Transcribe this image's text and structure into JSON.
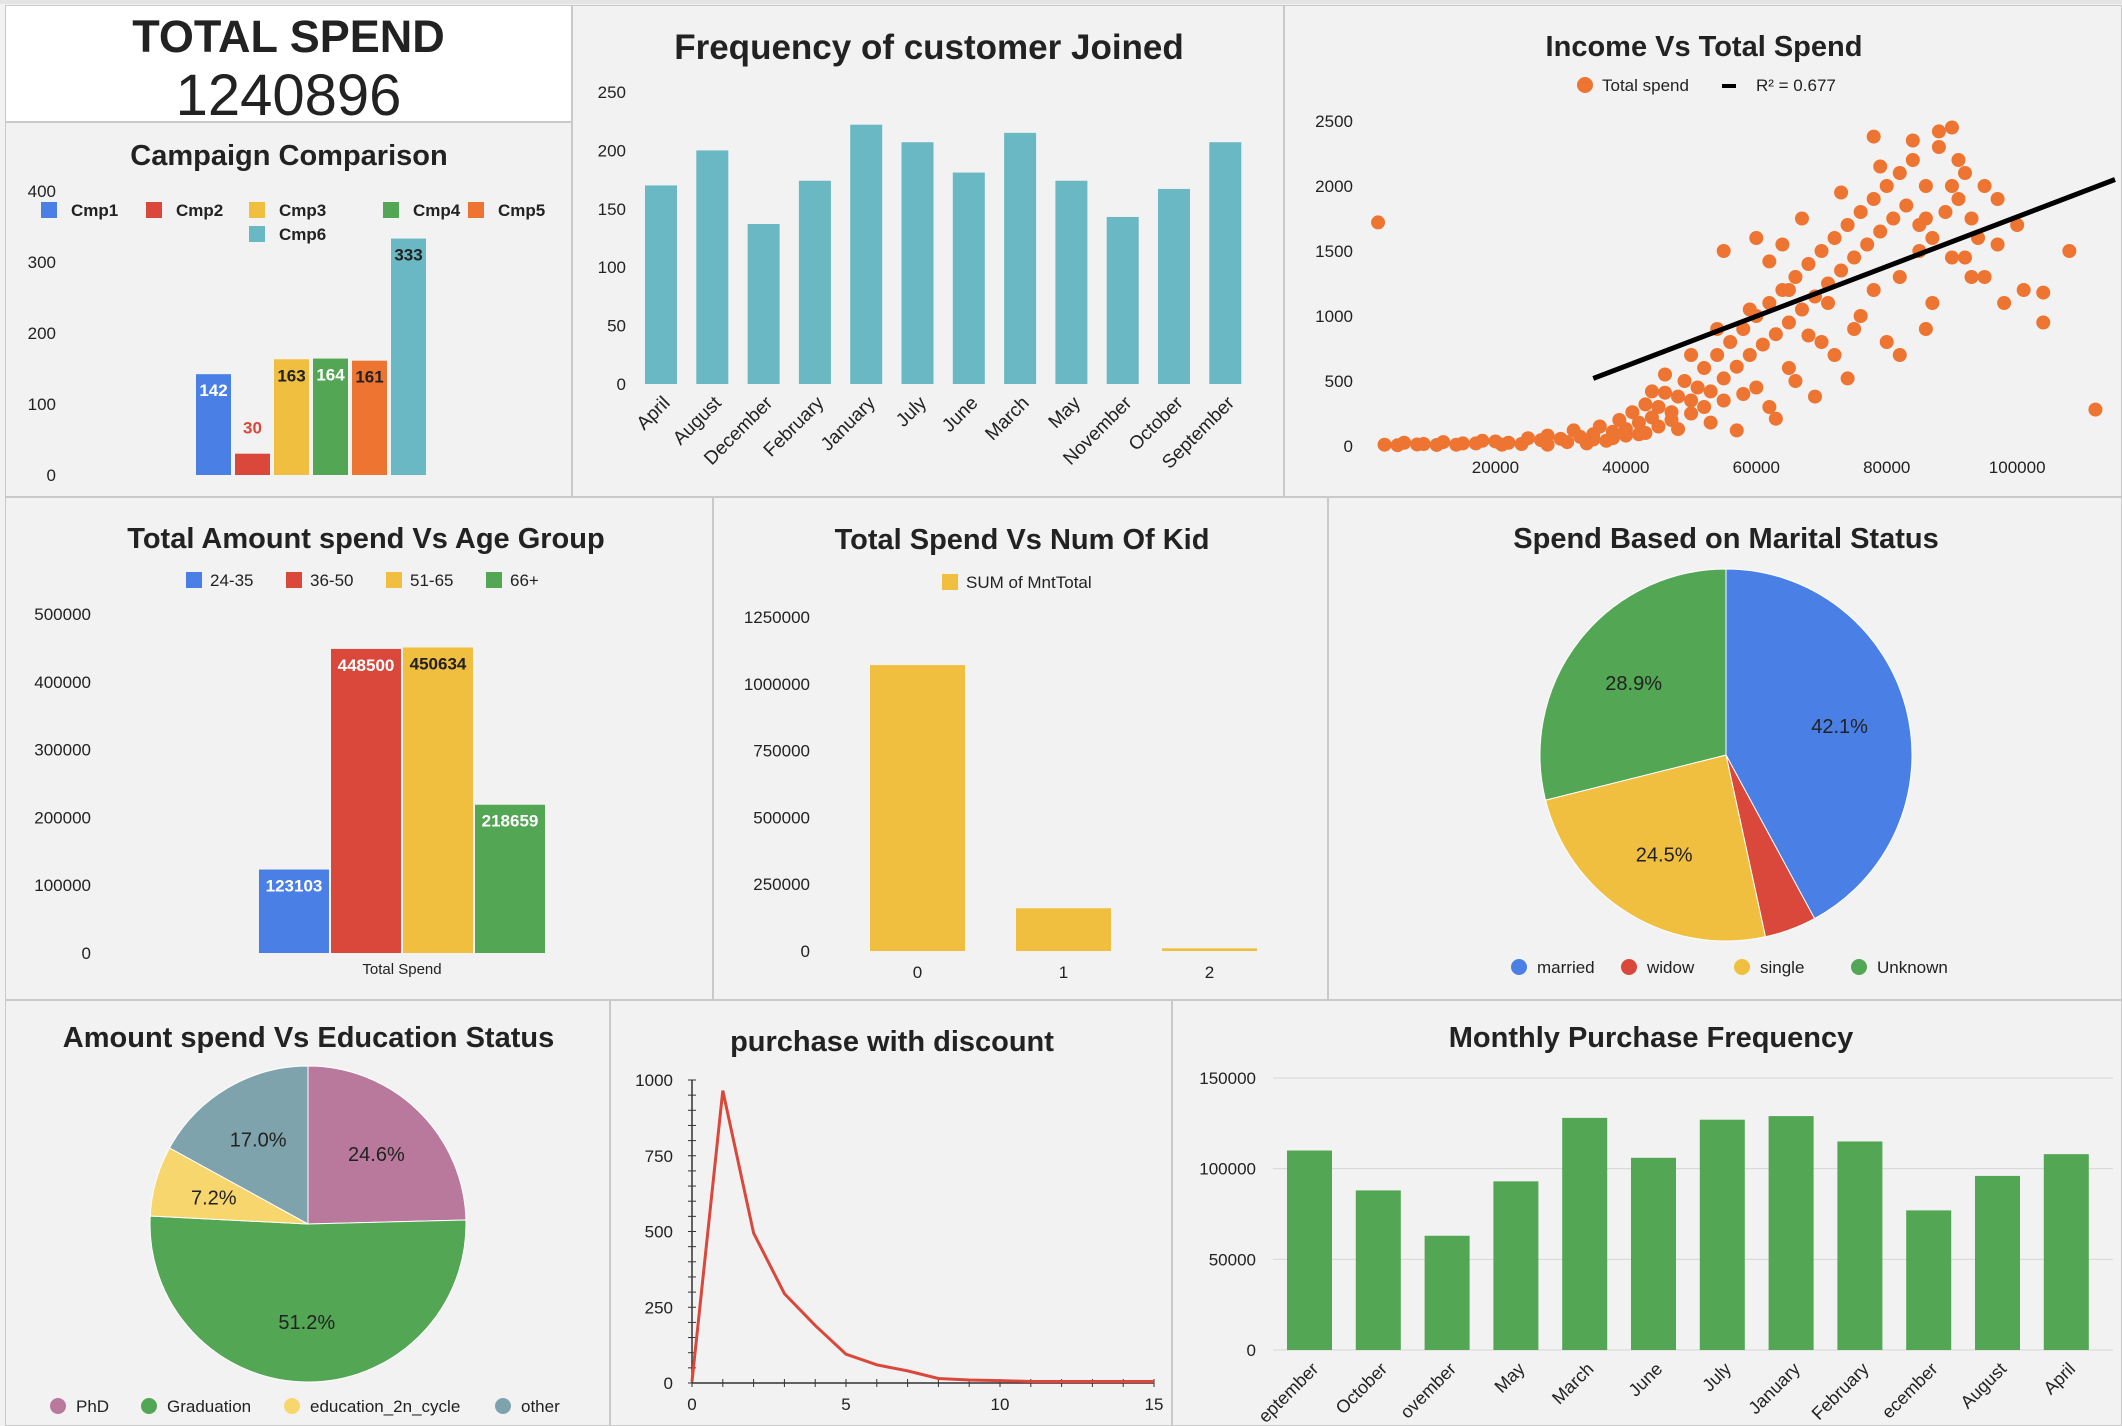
{
  "kpi": {
    "title": "TOTAL SPEND",
    "value": "1240896"
  },
  "chart_data": [
    {
      "id": "campaign",
      "type": "bar",
      "title": "Campaign Comparison",
      "categories": [
        "Cmp1",
        "Cmp2",
        "Cmp3",
        "Cmp4",
        "Cmp5",
        "Cmp6"
      ],
      "values": [
        142,
        30,
        163,
        164,
        161,
        333
      ],
      "colors": [
        "#4a7fe6",
        "#d9483b",
        "#f1bf3f",
        "#53a654",
        "#ee7431",
        "#69b8c4"
      ],
      "label_colors": [
        "#ffffff",
        "#d9483b",
        "#222222",
        "#ffffff",
        "#222222",
        "#222222"
      ],
      "yticks": [
        "0",
        "100",
        "200",
        "300",
        "400"
      ],
      "ylim": [
        0,
        400
      ],
      "legend": "top"
    },
    {
      "id": "joined",
      "type": "bar",
      "title": "Frequency of customer Joined",
      "categories": [
        "April",
        "August",
        "December",
        "February",
        "January",
        "July",
        "June",
        "March",
        "May",
        "November",
        "October",
        "September"
      ],
      "values": [
        170,
        200,
        137,
        174,
        222,
        207,
        181,
        215,
        174,
        143,
        167,
        207
      ],
      "color": "#69b8c4",
      "yticks": [
        "0",
        "50",
        "100",
        "150",
        "200",
        "250"
      ],
      "ylim": [
        0,
        250
      ]
    },
    {
      "id": "income",
      "type": "scatter",
      "title": "Income Vs Total Spend",
      "legend_items": [
        "Total spend",
        "R² = 0.677"
      ],
      "color": "#ee7431",
      "xticks": [
        "20000",
        "40000",
        "60000",
        "80000",
        "100000"
      ],
      "yticks": [
        "0",
        "500",
        "1000",
        "1500",
        "2000",
        "2500"
      ],
      "xlim": [
        0,
        115000
      ],
      "ylim": [
        0,
        2500
      ],
      "trendline": [
        [
          0,
          -150
        ],
        [
          115000,
          2050
        ]
      ],
      "points": [
        [
          3000,
          10
        ],
        [
          6000,
          25
        ],
        [
          9000,
          15
        ],
        [
          12000,
          30
        ],
        [
          15000,
          20
        ],
        [
          18000,
          40
        ],
        [
          20000,
          35
        ],
        [
          22000,
          25
        ],
        [
          25000,
          60
        ],
        [
          27000,
          45
        ],
        [
          28000,
          80
        ],
        [
          30000,
          55
        ],
        [
          32000,
          120
        ],
        [
          33000,
          70
        ],
        [
          35000,
          90
        ],
        [
          36000,
          150
        ],
        [
          38000,
          110
        ],
        [
          39000,
          200
        ],
        [
          40000,
          130
        ],
        [
          41000,
          260
        ],
        [
          42000,
          180
        ],
        [
          43000,
          320
        ],
        [
          44000,
          220
        ],
        [
          45000,
          300
        ],
        [
          46000,
          410
        ],
        [
          47000,
          260
        ],
        [
          48000,
          380
        ],
        [
          49000,
          500
        ],
        [
          50000,
          350
        ],
        [
          51000,
          450
        ],
        [
          52000,
          600
        ],
        [
          53000,
          420
        ],
        [
          54000,
          700
        ],
        [
          55000,
          520
        ],
        [
          56000,
          800
        ],
        [
          57000,
          610
        ],
        [
          58000,
          900
        ],
        [
          59000,
          700
        ],
        [
          60000,
          1000
        ],
        [
          61000,
          780
        ],
        [
          62000,
          1100
        ],
        [
          63000,
          860
        ],
        [
          64000,
          1200
        ],
        [
          65000,
          950
        ],
        [
          66000,
          1300
        ],
        [
          67000,
          1050
        ],
        [
          68000,
          1400
        ],
        [
          69000,
          1150
        ],
        [
          70000,
          1500
        ],
        [
          71000,
          1250
        ],
        [
          72000,
          1600
        ],
        [
          73000,
          1350
        ],
        [
          74000,
          1700
        ],
        [
          75000,
          1450
        ],
        [
          76000,
          1800
        ],
        [
          77000,
          1550
        ],
        [
          78000,
          1900
        ],
        [
          79000,
          1650
        ],
        [
          80000,
          2000
        ],
        [
          81000,
          1750
        ],
        [
          82000,
          2100
        ],
        [
          83000,
          1850
        ],
        [
          84000,
          2200
        ],
        [
          85000,
          1700
        ],
        [
          86000,
          2000
        ],
        [
          87000,
          1600
        ],
        [
          88000,
          2300
        ],
        [
          89000,
          1800
        ],
        [
          90000,
          2450
        ],
        [
          91000,
          1900
        ],
        [
          92000,
          2100
        ],
        [
          93000,
          1750
        ],
        [
          95000,
          2000
        ],
        [
          97000,
          1900
        ],
        [
          2000,
          1720
        ],
        [
          112000,
          280
        ],
        [
          104000,
          1180
        ],
        [
          104000,
          950
        ],
        [
          108000,
          1500
        ],
        [
          97000,
          1550
        ],
        [
          93000,
          1300
        ],
        [
          87000,
          1100
        ],
        [
          75000,
          900
        ],
        [
          70000,
          800
        ],
        [
          65000,
          600
        ],
        [
          60000,
          450
        ],
        [
          55000,
          350
        ],
        [
          50000,
          250
        ],
        [
          45000,
          150
        ],
        [
          40000,
          80
        ],
        [
          35000,
          50
        ],
        [
          62000,
          300
        ],
        [
          66000,
          500
        ],
        [
          72000,
          700
        ],
        [
          78000,
          1200
        ],
        [
          82000,
          1300
        ],
        [
          85000,
          1500
        ],
        [
          76000,
          1000
        ],
        [
          68000,
          850
        ],
        [
          58000,
          400
        ],
        [
          52000,
          300
        ],
        [
          47000,
          200
        ],
        [
          43000,
          100
        ],
        [
          38000,
          60
        ],
        [
          82000,
          700
        ],
        [
          86000,
          900
        ],
        [
          90000,
          1450
        ],
        [
          94000,
          1600
        ],
        [
          57000,
          120
        ],
        [
          63000,
          210
        ],
        [
          69000,
          380
        ],
        [
          74000,
          520
        ],
        [
          80000,
          800
        ],
        [
          55000,
          1500
        ],
        [
          60000,
          1600
        ],
        [
          62000,
          1420
        ],
        [
          78000,
          2380
        ],
        [
          84000,
          2350
        ],
        [
          88000,
          2420
        ],
        [
          91000,
          2200
        ],
        [
          79000,
          2150
        ],
        [
          73000,
          1950
        ],
        [
          67000,
          1750
        ],
        [
          64000,
          1550
        ],
        [
          71000,
          1100
        ],
        [
          65000,
          1200
        ],
        [
          59000,
          1050
        ],
        [
          54000,
          900
        ],
        [
          50000,
          700
        ],
        [
          46000,
          550
        ],
        [
          44000,
          420
        ],
        [
          53000,
          180
        ],
        [
          48000,
          130
        ],
        [
          42000,
          90
        ],
        [
          37000,
          40
        ],
        [
          34000,
          20
        ],
        [
          31000,
          30
        ],
        [
          28000,
          10
        ],
        [
          24000,
          15
        ],
        [
          21000,
          10
        ],
        [
          17000,
          20
        ],
        [
          14000,
          10
        ],
        [
          11000,
          8
        ],
        [
          8000,
          12
        ],
        [
          5000,
          6
        ],
        [
          90000,
          2000
        ],
        [
          86000,
          1750
        ],
        [
          92000,
          1450
        ],
        [
          95000,
          1300
        ],
        [
          100000,
          1700
        ],
        [
          101000,
          1200
        ],
        [
          98000,
          1100
        ]
      ]
    },
    {
      "id": "age",
      "type": "bar",
      "title": "Total Amount spend Vs Age Group",
      "series": [
        {
          "name": "24-35",
          "values": [
            123103
          ],
          "color": "#4a7fe6"
        },
        {
          "name": "36-50",
          "values": [
            448500
          ],
          "color": "#d9483b"
        },
        {
          "name": "51-65",
          "values": [
            450634
          ],
          "color": "#f1bf3f"
        },
        {
          "name": "66+",
          "values": [
            218659
          ],
          "color": "#53a654"
        }
      ],
      "label_colors": [
        "#ffffff",
        "#ffffff",
        "#222222",
        "#ffffff"
      ],
      "categories": [
        "Total Spend"
      ],
      "yticks": [
        "0",
        "100000",
        "200000",
        "300000",
        "400000",
        "500000"
      ],
      "ylim": [
        0,
        500000
      ],
      "legend": "top"
    },
    {
      "id": "kids",
      "type": "bar",
      "title": "Total Spend Vs Num Of Kid",
      "series": [
        {
          "name": "SUM of MntTotal",
          "values": [
            1070000,
            160000,
            10000
          ]
        }
      ],
      "categories": [
        "0",
        "1",
        "2"
      ],
      "color": "#f1bf3f",
      "yticks": [
        "0",
        "250000",
        "500000",
        "750000",
        "1000000",
        "1250000"
      ],
      "ylim": [
        0,
        1250000
      ],
      "legend": "top"
    },
    {
      "id": "marital",
      "type": "pie",
      "title": "Spend Based on Marital Status",
      "labels": [
        "married",
        "widow",
        "single",
        "Unknown"
      ],
      "values": [
        42.1,
        4.5,
        24.5,
        28.9
      ],
      "value_labels": [
        "42.1%",
        "",
        "24.5%",
        "28.9%"
      ],
      "colors": [
        "#4a7fe6",
        "#d9483b",
        "#f1bf3f",
        "#53a654"
      ],
      "legend": "bottom"
    },
    {
      "id": "education",
      "type": "pie",
      "title": "Amount spend Vs Education Status",
      "labels": [
        "PhD",
        "Graduation",
        "education_2n_cycle",
        "other"
      ],
      "values": [
        24.6,
        51.2,
        7.2,
        17.0
      ],
      "value_labels": [
        "24.6%",
        "51.2%",
        "7.2%",
        "17.0%"
      ],
      "colors": [
        "#b8799d",
        "#53a654",
        "#f7d66d",
        "#7fa3ad"
      ],
      "legend": "bottom"
    },
    {
      "id": "discount",
      "type": "line",
      "title": "purchase with discount",
      "x": [
        0,
        1,
        2,
        3,
        4,
        5,
        6,
        7,
        8,
        9,
        10,
        11,
        12,
        13,
        14,
        15
      ],
      "y": [
        5,
        965,
        495,
        295,
        190,
        95,
        60,
        40,
        15,
        10,
        8,
        5,
        5,
        5,
        5,
        5
      ],
      "color": "#d9483b",
      "xticks": [
        "0",
        "5",
        "10",
        "15"
      ],
      "yticks": [
        "0",
        "250",
        "500",
        "750",
        "1000"
      ],
      "xlim": [
        0,
        15
      ],
      "ylim": [
        0,
        1000
      ]
    },
    {
      "id": "monthly",
      "type": "bar",
      "title": "Monthly Purchase Frequency",
      "categories": [
        "September",
        "October",
        "November",
        "May",
        "March",
        "June",
        "July",
        "January",
        "February",
        "December",
        "August",
        "April"
      ],
      "tick_labels": [
        "eptember",
        "October",
        "ovember",
        "May",
        "March",
        "June",
        "July",
        "January",
        "February",
        "ecember",
        "August",
        "April"
      ],
      "values": [
        110000,
        88000,
        63000,
        93000,
        128000,
        106000,
        127000,
        129000,
        115000,
        77000,
        96000,
        108000
      ],
      "color": "#53a654",
      "yticks": [
        "0",
        "50000",
        "100000",
        "150000"
      ],
      "ylim": [
        0,
        150000
      ],
      "grid": true
    }
  ]
}
